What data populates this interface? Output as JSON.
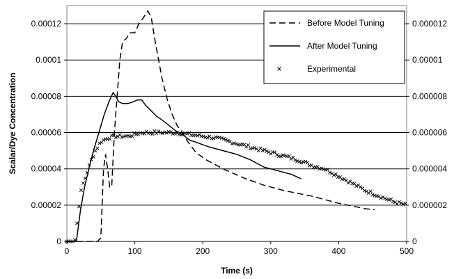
{
  "chart_data": {
    "type": "line",
    "xlabel": "Time (s)",
    "ylabel": "Scalar/Dye Concentration",
    "xlim": [
      0,
      500
    ],
    "ylim": [
      0,
      0.00013
    ],
    "x_ticks": [
      0,
      100,
      200,
      300,
      400,
      500
    ],
    "x_tick_labels": [
      "0",
      "100",
      "200",
      "300",
      "400",
      "500"
    ],
    "y_ticks": [
      0,
      2e-05,
      4e-05,
      6e-05,
      8e-05,
      0.0001,
      0.00012
    ],
    "y_tick_labels_left": [
      "0",
      "0.00002",
      "0.00004",
      "0.00006",
      "0.00008",
      "0.0001",
      "0.00012"
    ],
    "y_tick_labels_right": [
      "0",
      "0.000002",
      "0.000004",
      "0.000006",
      "0.000008",
      "0.00001",
      "0.000012"
    ],
    "grid": "horizontal",
    "legend_position": "top-right",
    "series": [
      {
        "name": "Before Model Tuning",
        "style": "dashed",
        "color": "#000000",
        "points": [
          [
            0,
            0
          ],
          [
            45,
            0
          ],
          [
            50,
            2e-06
          ],
          [
            54,
            4e-05
          ],
          [
            57,
            4.8e-05
          ],
          [
            60,
            4e-05
          ],
          [
            63,
            3e-05
          ],
          [
            66,
            3e-05
          ],
          [
            70,
            6e-05
          ],
          [
            74,
            8e-05
          ],
          [
            78,
            0.0001
          ],
          [
            82,
            0.00011
          ],
          [
            88,
            0.000112
          ],
          [
            92,
            0.000115
          ],
          [
            100,
            0.000115
          ],
          [
            106,
            0.00012
          ],
          [
            112,
            0.000123
          ],
          [
            119,
            0.000127
          ],
          [
            124,
            0.000124
          ],
          [
            130,
            0.00011
          ],
          [
            135,
            0.0001
          ],
          [
            140,
            9e-05
          ],
          [
            148,
            7.8e-05
          ],
          [
            155,
            7e-05
          ],
          [
            162,
            6.4e-05
          ],
          [
            170,
            6e-05
          ],
          [
            178,
            5.5e-05
          ],
          [
            190,
            4.9e-05
          ],
          [
            205,
            4.5e-05
          ],
          [
            230,
            4e-05
          ],
          [
            260,
            3.5e-05
          ],
          [
            290,
            3.1e-05
          ],
          [
            320,
            2.8e-05
          ],
          [
            360,
            2.5e-05
          ],
          [
            400,
            2.1e-05
          ],
          [
            440,
            1.8e-05
          ],
          [
            453,
            1.75e-05
          ]
        ]
      },
      {
        "name": "After Model Tuning",
        "style": "solid",
        "color": "#000000",
        "points": [
          [
            0,
            0
          ],
          [
            14,
            0
          ],
          [
            20,
            1.7e-05
          ],
          [
            26,
            3e-05
          ],
          [
            33,
            4.1e-05
          ],
          [
            40,
            5.1e-05
          ],
          [
            48,
            6.1e-05
          ],
          [
            55,
            7e-05
          ],
          [
            62,
            7.7e-05
          ],
          [
            68,
            8.2e-05
          ],
          [
            72,
            8e-05
          ],
          [
            76,
            7.7e-05
          ],
          [
            82,
            7.6e-05
          ],
          [
            90,
            7.6e-05
          ],
          [
            98,
            7.7e-05
          ],
          [
            104,
            7.8e-05
          ],
          [
            110,
            7.8e-05
          ],
          [
            116,
            7.5e-05
          ],
          [
            124,
            7.2e-05
          ],
          [
            132,
            6.9e-05
          ],
          [
            140,
            6.7e-05
          ],
          [
            150,
            6.4e-05
          ],
          [
            160,
            6.1e-05
          ],
          [
            170,
            5.9e-05
          ],
          [
            180,
            5.6e-05
          ],
          [
            195,
            5.4e-05
          ],
          [
            210,
            5.2e-05
          ],
          [
            230,
            5e-05
          ],
          [
            250,
            4.8e-05
          ],
          [
            270,
            4.5e-05
          ],
          [
            290,
            4.1e-05
          ],
          [
            310,
            3.9e-05
          ],
          [
            330,
            3.7e-05
          ],
          [
            345,
            3.45e-05
          ]
        ]
      },
      {
        "name": "Experimental",
        "style": "markers",
        "marker": "x",
        "color": "#000000",
        "x_start": 0,
        "x_end": 500,
        "x_step": 3,
        "points": [
          [
            0,
            0
          ],
          [
            8,
            0
          ],
          [
            12,
            1e-06
          ],
          [
            15,
            1e-05
          ],
          [
            18,
            2e-05
          ],
          [
            22,
            3e-05
          ],
          [
            28,
            3.6e-05
          ],
          [
            35,
            4.4e-05
          ],
          [
            42,
            5e-05
          ],
          [
            50,
            5.5e-05
          ],
          [
            60,
            5.7e-05
          ],
          [
            70,
            5.8e-05
          ],
          [
            80,
            5.8e-05
          ],
          [
            90,
            5.8e-05
          ],
          [
            100,
            5.9e-05
          ],
          [
            110,
            6e-05
          ],
          [
            120,
            6e-05
          ],
          [
            140,
            6e-05
          ],
          [
            160,
            6e-05
          ],
          [
            180,
            5.9e-05
          ],
          [
            200,
            5.8e-05
          ],
          [
            220,
            5.7e-05
          ],
          [
            240,
            5.5e-05
          ],
          [
            260,
            5.3e-05
          ],
          [
            280,
            5.1e-05
          ],
          [
            300,
            4.9e-05
          ],
          [
            320,
            4.7e-05
          ],
          [
            340,
            4.5e-05
          ],
          [
            360,
            4.2e-05
          ],
          [
            380,
            4e-05
          ],
          [
            400,
            3.6e-05
          ],
          [
            420,
            3.2e-05
          ],
          [
            440,
            2.8e-05
          ],
          [
            460,
            2.5e-05
          ],
          [
            480,
            2.2e-05
          ],
          [
            500,
            2e-05
          ]
        ]
      }
    ]
  },
  "colors": {
    "background": "#ffffff",
    "plot_border": "#7f7f7f",
    "gridline": "#000000",
    "series": "#000000"
  }
}
